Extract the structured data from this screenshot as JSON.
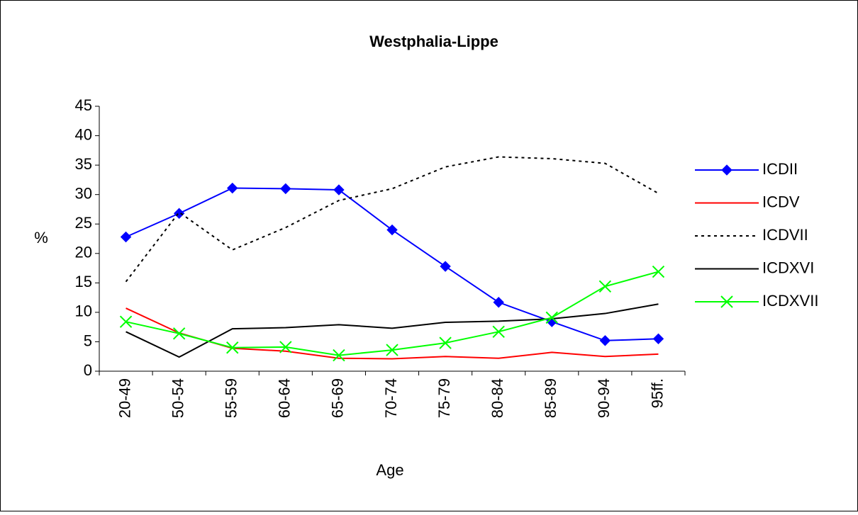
{
  "chart_data": {
    "type": "line",
    "title": "Westphalia-Lippe",
    "x_label": "Age",
    "y_label": "%",
    "categories": [
      "20-49",
      "50-54",
      "55-59",
      "60-64",
      "65-69",
      "70-74",
      "75-79",
      "80-84",
      "85-89",
      "90-94",
      "95ff."
    ],
    "ylim": [
      0,
      45
    ],
    "yticks": [
      0,
      5,
      10,
      15,
      20,
      25,
      30,
      35,
      40,
      45
    ],
    "grid": false,
    "legend": "right",
    "series": [
      {
        "name": "ICDII",
        "color": "#0000ff",
        "marker": "diamond",
        "dash": "solid",
        "values": [
          22.8,
          26.8,
          31.1,
          31.0,
          30.8,
          24.0,
          17.8,
          11.7,
          8.4,
          5.2,
          5.5
        ]
      },
      {
        "name": "ICDV",
        "color": "#ff0000",
        "marker": "none",
        "dash": "solid",
        "values": [
          10.7,
          6.5,
          3.9,
          3.4,
          2.2,
          2.1,
          2.5,
          2.2,
          3.2,
          2.5,
          2.9
        ]
      },
      {
        "name": "ICDVII",
        "color": "#000000",
        "marker": "none",
        "dash": "dotted",
        "values": [
          15.2,
          27.0,
          20.6,
          24.4,
          29.0,
          31.0,
          34.7,
          36.4,
          36.1,
          35.3,
          30.2
        ]
      },
      {
        "name": "ICDXVI",
        "color": "#000000",
        "marker": "none",
        "dash": "solid",
        "values": [
          6.7,
          2.4,
          7.2,
          7.4,
          7.9,
          7.3,
          8.3,
          8.5,
          8.9,
          9.8,
          11.4
        ]
      },
      {
        "name": "ICDXVII",
        "color": "#00ff00",
        "marker": "x",
        "dash": "solid",
        "values": [
          8.4,
          6.4,
          4.0,
          4.1,
          2.7,
          3.6,
          4.8,
          6.7,
          9.1,
          14.4,
          16.9
        ]
      }
    ]
  }
}
